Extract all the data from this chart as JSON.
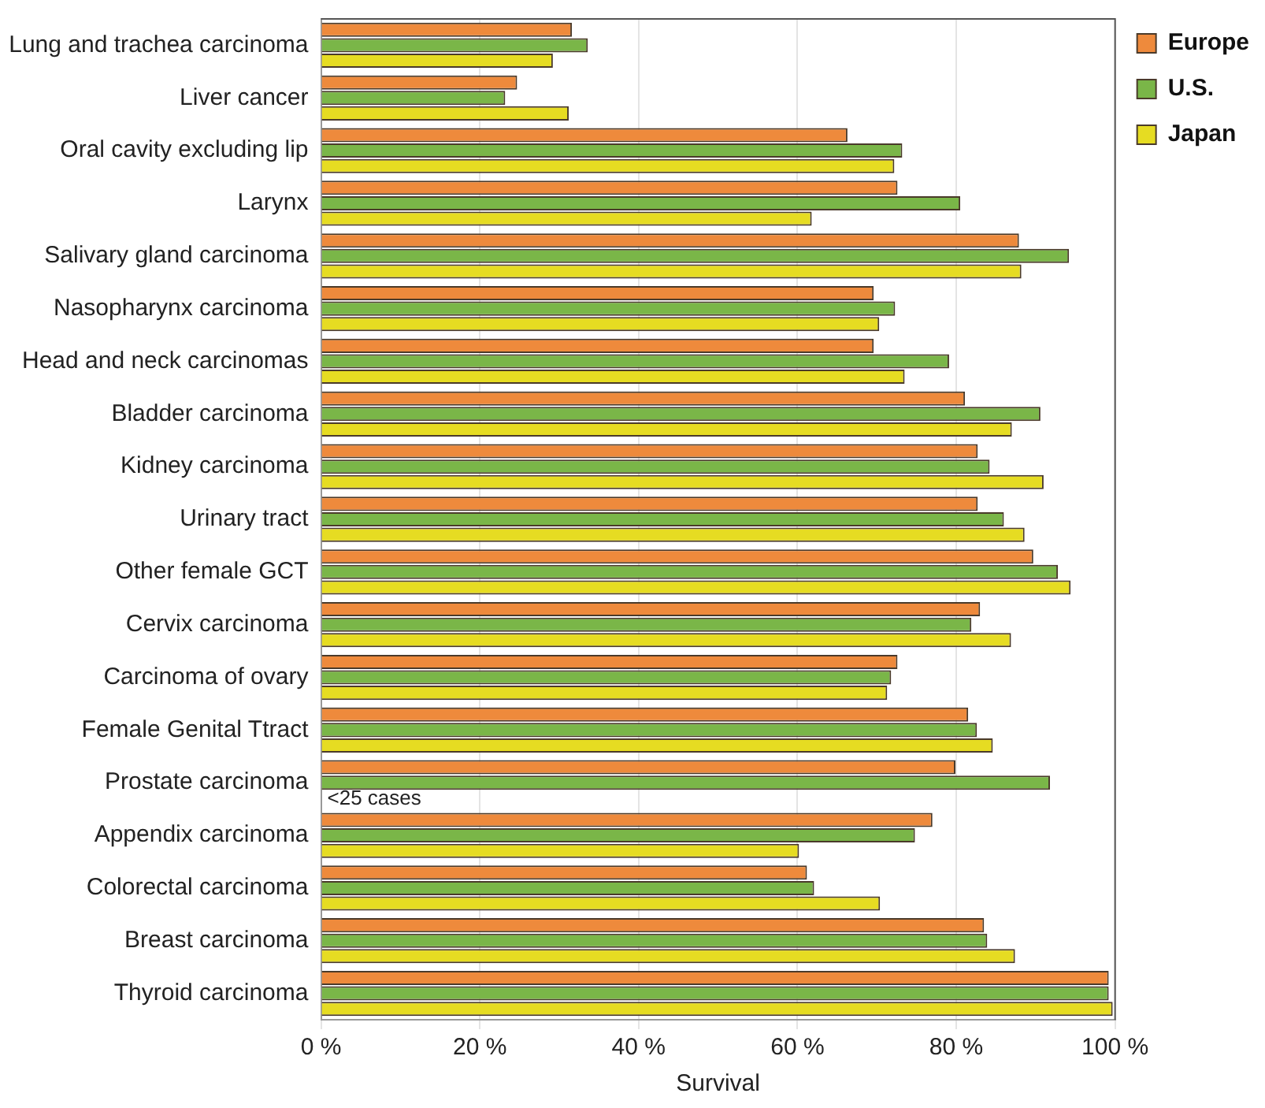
{
  "chart_data": {
    "type": "bar",
    "orientation": "horizontal",
    "xlabel": "Survival",
    "categories": [
      "Lung and trachea carcinoma",
      "Liver cancer",
      "Oral cavity excluding lip",
      "Larynx",
      "Salivary gland carcinoma",
      "Nasopharynx carcinoma",
      "Head and neck carcinomas",
      "Bladder carcinoma",
      "Kidney carcinoma",
      "Urinary tract",
      "Other female GCT",
      "Cervix carcinoma",
      "Carcinoma of ovary",
      "Female Genital Ttract",
      "Prostate carcinoma",
      "Appendix carcinoma",
      "Colorectal carcinoma",
      "Breast carcinoma",
      "Thyroid carcinoma"
    ],
    "series": [
      {
        "name": "Europe",
        "color": "#ee8a3c",
        "values": [
          31.6,
          24.7,
          66.3,
          72.6,
          87.9,
          69.6,
          69.6,
          81.1,
          82.7,
          82.7,
          89.7,
          83.0,
          72.6,
          81.5,
          79.9,
          77.0,
          61.2,
          83.5,
          99.2
        ]
      },
      {
        "name": "U.S.",
        "color": "#7ab648",
        "values": [
          33.6,
          23.2,
          73.2,
          80.5,
          94.2,
          72.3,
          79.1,
          90.6,
          84.2,
          86.0,
          92.8,
          81.9,
          71.8,
          82.6,
          91.8,
          74.8,
          62.1,
          83.9,
          99.2
        ]
      },
      {
        "name": "Japan",
        "color": "#e6dc22",
        "values": [
          29.2,
          31.2,
          72.2,
          61.8,
          88.2,
          70.3,
          73.5,
          87.0,
          91.0,
          88.6,
          94.4,
          86.9,
          71.3,
          84.6,
          null,
          60.2,
          70.4,
          87.4,
          99.7
        ]
      }
    ],
    "xlim": [
      0,
      100
    ],
    "xticks": [
      {
        "value": 0,
        "label": "0 %"
      },
      {
        "value": 20,
        "label": "20 %"
      },
      {
        "value": 40,
        "label": "40 %"
      },
      {
        "value": 60,
        "label": "60 %"
      },
      {
        "value": 80,
        "label": "80 %"
      },
      {
        "value": 100,
        "label": "100 %"
      }
    ],
    "grid": "x",
    "legend": "top right",
    "annotations": [
      {
        "text": "<25 cases",
        "x": 0,
        "y": "Prostate carcinoma"
      }
    ]
  }
}
